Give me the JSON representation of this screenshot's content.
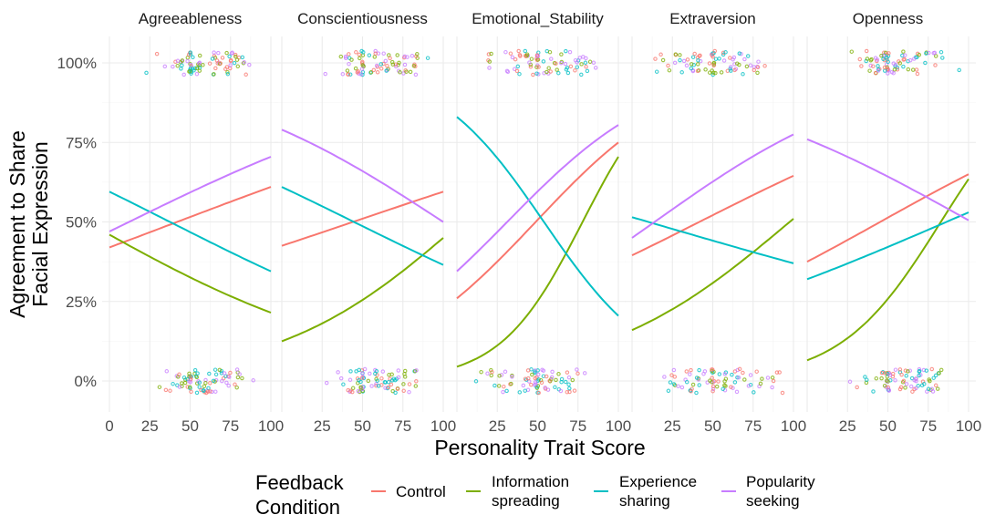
{
  "chart_data": {
    "type": "line",
    "xlabel": "Personality Trait Score",
    "ylabel_lines": [
      "Agreement to Share",
      "Facial Expression"
    ],
    "xlim": [
      0,
      100
    ],
    "ylim": [
      0,
      1
    ],
    "y_ticks": [
      0,
      0.25,
      0.5,
      0.75,
      1
    ],
    "y_tick_labels": [
      "0%",
      "25%",
      "50%",
      "75%",
      "100%"
    ],
    "x_ticks_first_panel": [
      0,
      25,
      50,
      75,
      100
    ],
    "x_tick_labels_first_panel": [
      "0",
      "25",
      "50",
      "75",
      "100"
    ],
    "x_ticks_other_panels": [
      25,
      50,
      75,
      100
    ],
    "x_tick_labels_other_panels": [
      "25",
      "50",
      "75",
      "100"
    ],
    "panels": [
      {
        "title": "Agreeableness",
        "x": [
          0,
          100
        ],
        "series": [
          {
            "name": "Control",
            "values": [
              0.42,
              0.61
            ]
          },
          {
            "name": "Information spreading",
            "values": [
              0.46,
              0.215
            ]
          },
          {
            "name": "Experience sharing",
            "values": [
              0.595,
              0.345
            ]
          },
          {
            "name": "Popularity seeking",
            "values": [
              0.47,
              0.705
            ]
          }
        ]
      },
      {
        "title": "Conscientiousness",
        "x": [
          0,
          100
        ],
        "series": [
          {
            "name": "Control",
            "values": [
              0.425,
              0.595
            ]
          },
          {
            "name": "Information spreading",
            "values": [
              0.125,
              0.45
            ]
          },
          {
            "name": "Experience sharing",
            "values": [
              0.61,
              0.365
            ]
          },
          {
            "name": "Popularity seeking",
            "values": [
              0.79,
              0.5
            ]
          }
        ]
      },
      {
        "title": "Emotional_Stability",
        "x": [
          0,
          100
        ],
        "series": [
          {
            "name": "Control",
            "values": [
              0.26,
              0.75
            ]
          },
          {
            "name": "Information spreading",
            "values": [
              0.045,
              0.705
            ]
          },
          {
            "name": "Experience sharing",
            "values": [
              0.83,
              0.205
            ]
          },
          {
            "name": "Popularity seeking",
            "values": [
              0.345,
              0.805
            ]
          }
        ]
      },
      {
        "title": "Extraversion",
        "x": [
          0,
          100
        ],
        "series": [
          {
            "name": "Control",
            "values": [
              0.395,
              0.645
            ]
          },
          {
            "name": "Information spreading",
            "values": [
              0.16,
              0.51
            ]
          },
          {
            "name": "Experience sharing",
            "values": [
              0.515,
              0.37
            ]
          },
          {
            "name": "Popularity seeking",
            "values": [
              0.45,
              0.775
            ]
          }
        ]
      },
      {
        "title": "Openness",
        "x": [
          0,
          100
        ],
        "series": [
          {
            "name": "Control",
            "values": [
              0.375,
              0.65
            ]
          },
          {
            "name": "Information spreading",
            "values": [
              0.065,
              0.635
            ]
          },
          {
            "name": "Experience sharing",
            "values": [
              0.32,
              0.53
            ]
          },
          {
            "name": "Popularity seeking",
            "values": [
              0.76,
              0.505
            ]
          }
        ]
      }
    ],
    "jitter_points": {
      "y_levels": [
        0,
        1
      ],
      "x_range_by_panel": [
        [
          20,
          100
        ],
        [
          20,
          100
        ],
        [
          0,
          100
        ],
        [
          0,
          100
        ],
        [
          20,
          100
        ]
      ]
    },
    "legend": {
      "title_lines": [
        "Feedback",
        "Condition"
      ],
      "position": "bottom",
      "entries": [
        {
          "label_lines": [
            "Control"
          ],
          "color": "#F8766D"
        },
        {
          "label_lines": [
            "Information",
            "spreading"
          ],
          "color": "#7CAE00"
        },
        {
          "label_lines": [
            "Experience",
            "sharing"
          ],
          "color": "#00BFC4"
        },
        {
          "label_lines": [
            "Popularity",
            "seeking"
          ],
          "color": "#C77CFF"
        }
      ]
    },
    "colors": {
      "Control": "#F8766D",
      "Information spreading": "#7CAE00",
      "Experience sharing": "#00BFC4",
      "Popularity seeking": "#C77CFF"
    },
    "grid": true
  }
}
